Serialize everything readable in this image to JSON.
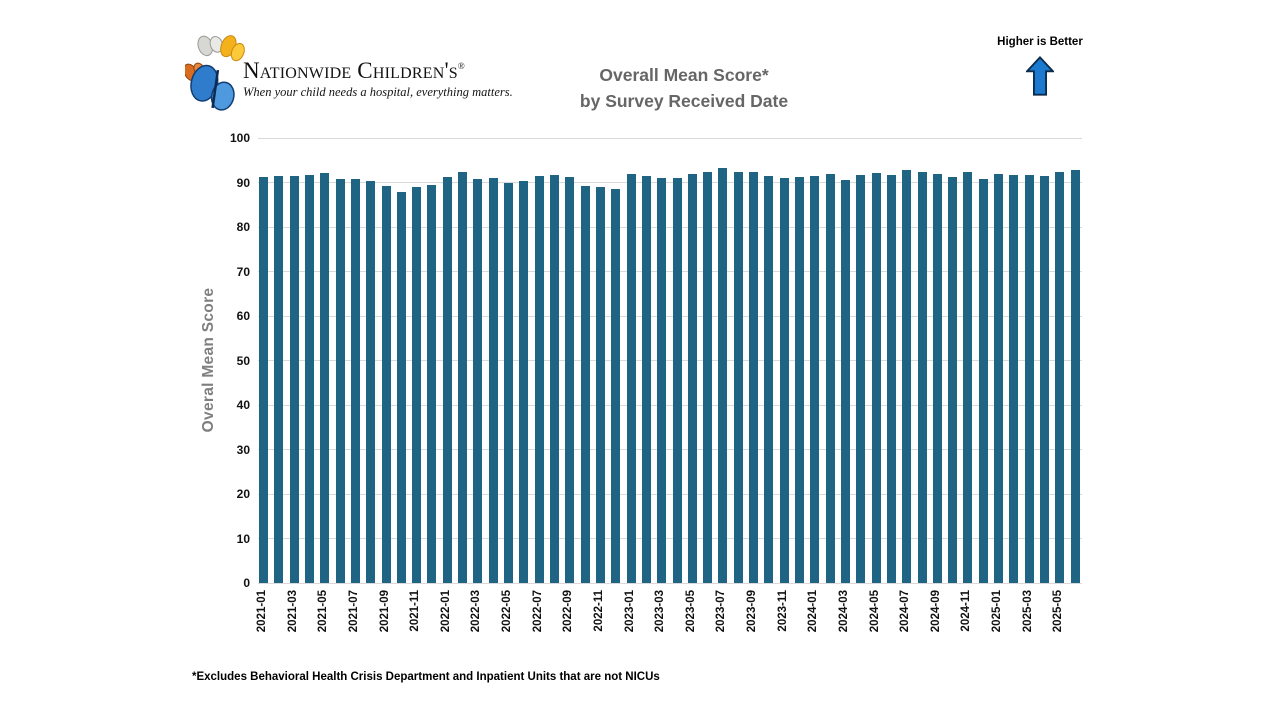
{
  "header": {
    "logo_name": "Nationwide Children's",
    "logo_registered": "®",
    "logo_tagline": "When your child needs a hospital, everything matters.",
    "title_line1": "Overall Mean Score*",
    "title_line2": "by Survey Received Date",
    "higher_is_better": "Higher is Better"
  },
  "footnote": "*Excludes Behavioral Health Crisis Department and Inpatient Units that are not NICUs",
  "colors": {
    "bar": "#206484",
    "grid": "#d9d9d9",
    "arrow_fill": "#1b79cf",
    "arrow_stroke": "#0d2c4a",
    "title_gray": "#666666",
    "axis_title_gray": "#7f7f7f"
  },
  "chart_data": {
    "type": "bar",
    "title": "Overall Mean Score* by Survey Received Date",
    "xlabel": "",
    "ylabel": "Overal Mean Score",
    "ylim": [
      0,
      100
    ],
    "ytick_step": 10,
    "grid": true,
    "legend": "none",
    "x_label_every": 2,
    "categories": [
      "2021-01",
      "2021-02",
      "2021-03",
      "2021-04",
      "2021-05",
      "2021-06",
      "2021-07",
      "2021-08",
      "2021-09",
      "2021-10",
      "2021-11",
      "2021-12",
      "2022-01",
      "2022-02",
      "2022-03",
      "2022-04",
      "2022-05",
      "2022-06",
      "2022-07",
      "2022-08",
      "2022-09",
      "2022-10",
      "2022-11",
      "2022-12",
      "2023-01",
      "2023-02",
      "2023-03",
      "2023-04",
      "2023-05",
      "2023-06",
      "2023-07",
      "2023-08",
      "2023-09",
      "2023-10",
      "2023-11",
      "2023-12",
      "2024-01",
      "2024-02",
      "2024-03",
      "2024-04",
      "2024-05",
      "2024-06",
      "2024-07",
      "2024-08",
      "2024-09",
      "2024-10",
      "2024-11",
      "2024-12",
      "2025-01",
      "2025-02",
      "2025-03",
      "2025-04",
      "2025-05",
      "2025-06"
    ],
    "values": [
      91.3,
      91.5,
      91.4,
      91.7,
      92.2,
      90.8,
      90.7,
      90.3,
      89.3,
      87.9,
      88.9,
      89.4,
      91.2,
      92.3,
      90.8,
      91.1,
      89.9,
      90.3,
      91.4,
      91.6,
      91.3,
      89.3,
      89.0,
      88.6,
      91.9,
      91.5,
      91.1,
      91.1,
      92.0,
      92.3,
      93.2,
      92.4,
      92.3,
      91.5,
      91.1,
      91.3,
      91.5,
      92.0,
      90.6,
      91.7,
      92.2,
      91.7,
      92.7,
      92.4,
      91.9,
      91.2,
      92.4,
      90.8,
      92.0,
      91.7,
      91.7,
      91.5,
      92.4,
      92.9
    ]
  }
}
